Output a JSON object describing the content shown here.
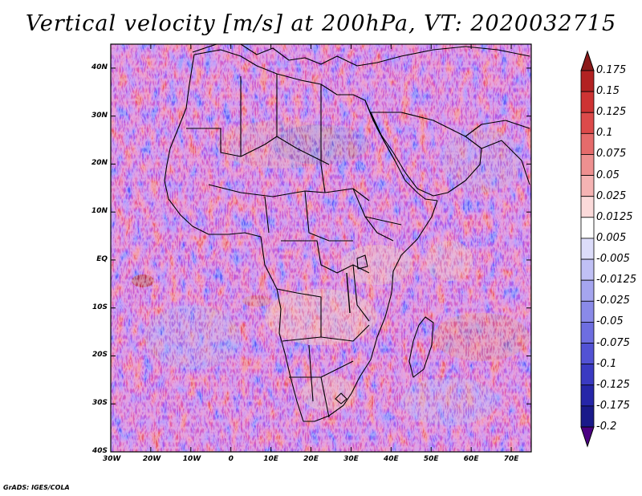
{
  "title": "Vertical velocity [m/s] at 200hPa, VT: 2020032715",
  "footer": "GrADS: IGES/COLA",
  "map": {
    "lon_range": [
      -30,
      75
    ],
    "lat_range": [
      -40,
      45
    ],
    "x_ticks": [
      "30W",
      "20W",
      "10W",
      "0",
      "10E",
      "20E",
      "30E",
      "40E",
      "50E",
      "60E",
      "70E"
    ],
    "y_ticks": [
      "40N",
      "30N",
      "20N",
      "10N",
      "EQ",
      "10S",
      "20S",
      "30S",
      "40S"
    ],
    "field": "vertical velocity",
    "level": "200hPa"
  },
  "colorbar": {
    "labels": [
      "0.175",
      "0.15",
      "0.125",
      "0.1",
      "0.075",
      "0.05",
      "0.025",
      "0.0125",
      "0.005",
      "-0.005",
      "-0.0125",
      "-0.025",
      "-0.05",
      "-0.075",
      "-0.1",
      "-0.125",
      "-0.175",
      "-0.2"
    ],
    "colors": [
      "#8b1a1a",
      "#b22222",
      "#cd3333",
      "#dc4a4a",
      "#e56b6b",
      "#ee9090",
      "#f5b3b3",
      "#fbdada",
      "#ffffff",
      "#dcdcfa",
      "#c0c0f5",
      "#a5a5ef",
      "#8a8ae8",
      "#6e6ee0",
      "#5252d4",
      "#3a3ac2",
      "#2626a8",
      "#1a1a8a",
      "#4b0082"
    ]
  }
}
